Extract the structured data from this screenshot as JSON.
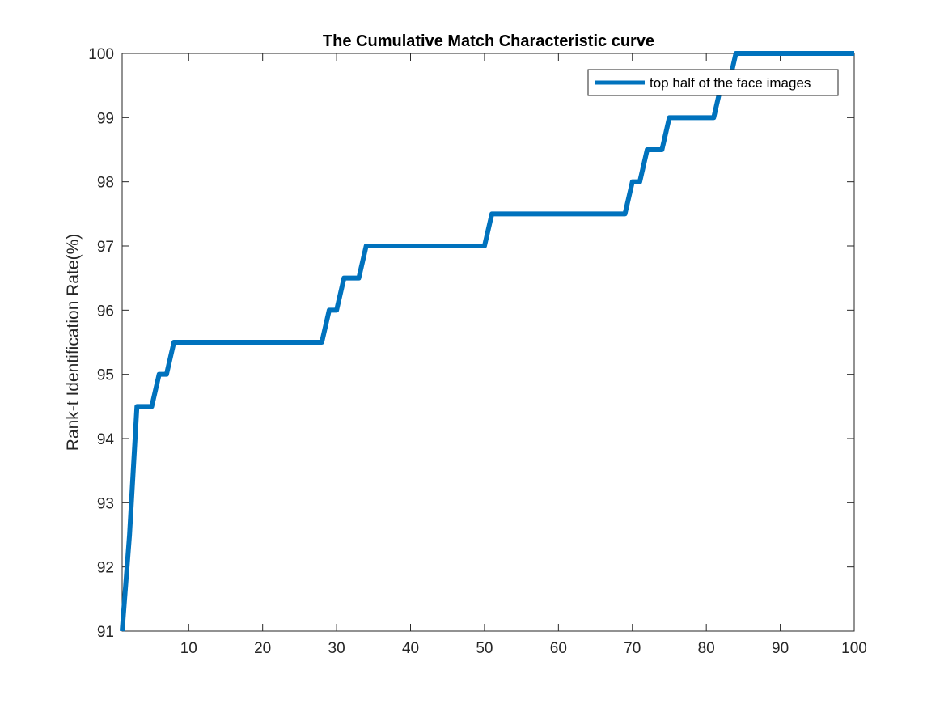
{
  "chart_data": {
    "type": "line",
    "title": "The Cumulative Match Characteristic curve",
    "xlabel": "",
    "ylabel": "Rank-t Identification Rate(%)",
    "xlim": [
      1,
      100
    ],
    "ylim": [
      91,
      100
    ],
    "xticks": [
      10,
      20,
      30,
      40,
      50,
      60,
      70,
      80,
      90,
      100
    ],
    "yticks": [
      91,
      92,
      93,
      94,
      95,
      96,
      97,
      98,
      99,
      100
    ],
    "grid": false,
    "legend_position": "top-right",
    "series": [
      {
        "name": "top half of the face images",
        "color": "#0072BD",
        "x": [
          1,
          2,
          3,
          4,
          5,
          6,
          7,
          8,
          9,
          10,
          11,
          12,
          13,
          14,
          15,
          16,
          17,
          18,
          19,
          20,
          21,
          22,
          23,
          24,
          25,
          26,
          27,
          28,
          29,
          30,
          31,
          32,
          33,
          34,
          35,
          36,
          37,
          38,
          39,
          40,
          41,
          42,
          43,
          44,
          45,
          46,
          47,
          48,
          49,
          50,
          51,
          52,
          53,
          54,
          55,
          56,
          57,
          58,
          59,
          60,
          61,
          62,
          63,
          64,
          65,
          66,
          67,
          68,
          69,
          70,
          71,
          72,
          73,
          74,
          75,
          76,
          77,
          78,
          79,
          80,
          81,
          82,
          83,
          84,
          85,
          86,
          87,
          88,
          89,
          90,
          91,
          92,
          93,
          94,
          95,
          96,
          97,
          98,
          99,
          100
        ],
        "y": [
          91.0,
          92.5,
          94.5,
          94.5,
          94.5,
          95.0,
          95.0,
          95.5,
          95.5,
          95.5,
          95.5,
          95.5,
          95.5,
          95.5,
          95.5,
          95.5,
          95.5,
          95.5,
          95.5,
          95.5,
          95.5,
          95.5,
          95.5,
          95.5,
          95.5,
          95.5,
          95.5,
          95.5,
          96.0,
          96.0,
          96.5,
          96.5,
          96.5,
          97.0,
          97.0,
          97.0,
          97.0,
          97.0,
          97.0,
          97.0,
          97.0,
          97.0,
          97.0,
          97.0,
          97.0,
          97.0,
          97.0,
          97.0,
          97.0,
          97.0,
          97.5,
          97.5,
          97.5,
          97.5,
          97.5,
          97.5,
          97.5,
          97.5,
          97.5,
          97.5,
          97.5,
          97.5,
          97.5,
          97.5,
          97.5,
          97.5,
          97.5,
          97.5,
          97.5,
          98.0,
          98.0,
          98.5,
          98.5,
          98.5,
          99.0,
          99.0,
          99.0,
          99.0,
          99.0,
          99.0,
          99.0,
          99.5,
          99.5,
          100.0,
          100.0,
          100.0,
          100.0,
          100.0,
          100.0,
          100.0,
          100.0,
          100.0,
          100.0,
          100.0,
          100.0,
          100.0,
          100.0,
          100.0,
          100.0,
          100.0
        ]
      }
    ]
  }
}
